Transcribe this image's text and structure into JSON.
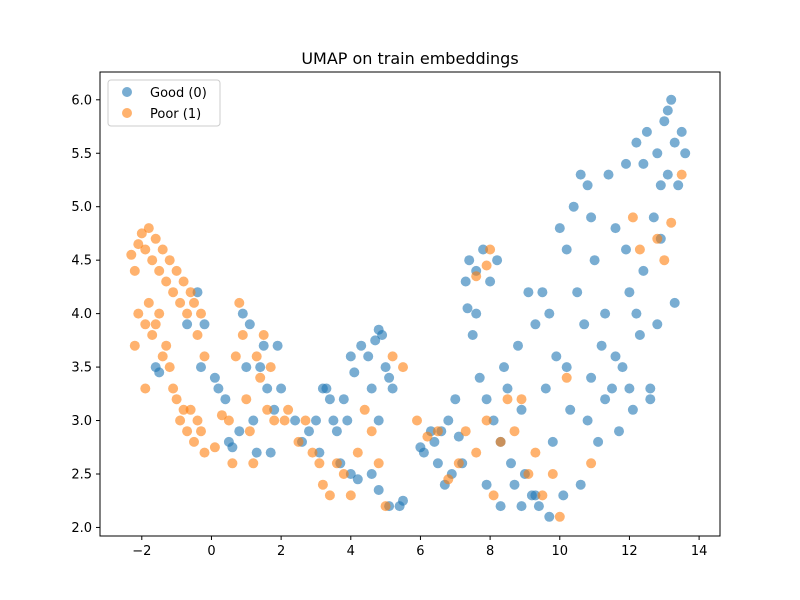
{
  "chart_data": {
    "type": "scatter",
    "title": "UMAP on train embeddings",
    "xlabel": "",
    "ylabel": "",
    "xlim": [
      -3.2,
      14.6
    ],
    "ylim": [
      1.92,
      6.26
    ],
    "xticks": [
      -2,
      0,
      2,
      4,
      6,
      8,
      10,
      12,
      14
    ],
    "yticks": [
      2.0,
      2.5,
      3.0,
      3.5,
      4.0,
      4.5,
      5.0,
      5.5,
      6.0
    ],
    "grid": false,
    "legend_position": "upper-left",
    "series": [
      {
        "name": "Good (0)",
        "color": "#1f77b4",
        "points": [
          [
            -1.6,
            3.5
          ],
          [
            -1.5,
            3.45
          ],
          [
            -0.7,
            3.9
          ],
          [
            -0.4,
            4.2
          ],
          [
            -0.2,
            3.9
          ],
          [
            -0.3,
            3.5
          ],
          [
            0.1,
            3.4
          ],
          [
            0.2,
            3.3
          ],
          [
            0.4,
            3.2
          ],
          [
            0.5,
            2.8
          ],
          [
            0.6,
            2.75
          ],
          [
            0.8,
            2.9
          ],
          [
            0.9,
            4.0
          ],
          [
            1.0,
            3.5
          ],
          [
            1.1,
            3.9
          ],
          [
            1.2,
            3.0
          ],
          [
            1.3,
            2.7
          ],
          [
            1.4,
            3.5
          ],
          [
            1.5,
            3.7
          ],
          [
            1.6,
            3.3
          ],
          [
            1.7,
            2.7
          ],
          [
            1.8,
            3.1
          ],
          [
            1.9,
            3.7
          ],
          [
            2.0,
            3.3
          ],
          [
            2.4,
            3.0
          ],
          [
            2.6,
            2.8
          ],
          [
            2.8,
            2.9
          ],
          [
            3.0,
            3.0
          ],
          [
            3.1,
            2.7
          ],
          [
            3.2,
            3.3
          ],
          [
            3.3,
            3.3
          ],
          [
            3.4,
            3.2
          ],
          [
            3.5,
            3.0
          ],
          [
            3.6,
            2.9
          ],
          [
            3.7,
            2.6
          ],
          [
            3.8,
            3.2
          ],
          [
            3.9,
            3.0
          ],
          [
            4.0,
            3.6
          ],
          [
            4.0,
            2.5
          ],
          [
            4.1,
            3.45
          ],
          [
            4.2,
            2.45
          ],
          [
            4.3,
            3.7
          ],
          [
            4.5,
            3.6
          ],
          [
            4.6,
            3.3
          ],
          [
            4.7,
            3.75
          ],
          [
            4.8,
            3.85
          ],
          [
            4.8,
            2.35
          ],
          [
            4.9,
            3.8
          ],
          [
            4.6,
            2.5
          ],
          [
            4.8,
            3.0
          ],
          [
            5.0,
            3.5
          ],
          [
            5.1,
            3.4
          ],
          [
            5.2,
            3.3
          ],
          [
            5.4,
            2.2
          ],
          [
            5.5,
            2.25
          ],
          [
            5.1,
            2.2
          ],
          [
            6.0,
            2.75
          ],
          [
            6.1,
            2.7
          ],
          [
            6.3,
            2.9
          ],
          [
            6.4,
            2.8
          ],
          [
            6.5,
            2.6
          ],
          [
            6.6,
            2.9
          ],
          [
            6.8,
            3.0
          ],
          [
            6.9,
            2.5
          ],
          [
            7.1,
            2.85
          ],
          [
            7.3,
            4.3
          ],
          [
            7.35,
            4.05
          ],
          [
            7.4,
            4.5
          ],
          [
            7.5,
            3.8
          ],
          [
            7.6,
            4.4
          ],
          [
            7.7,
            3.4
          ],
          [
            7.8,
            4.6
          ],
          [
            7.9,
            3.2
          ],
          [
            8.0,
            4.3
          ],
          [
            8.1,
            3.0
          ],
          [
            8.2,
            4.5
          ],
          [
            8.3,
            2.8
          ],
          [
            8.4,
            3.5
          ],
          [
            8.5,
            3.3
          ],
          [
            8.6,
            2.6
          ],
          [
            8.7,
            2.4
          ],
          [
            8.8,
            3.7
          ],
          [
            8.9,
            3.1
          ],
          [
            9.0,
            2.5
          ],
          [
            9.1,
            4.2
          ],
          [
            9.2,
            2.3
          ],
          [
            9.3,
            3.9
          ],
          [
            9.4,
            2.2
          ],
          [
            9.5,
            4.2
          ],
          [
            9.6,
            3.3
          ],
          [
            9.7,
            4.0
          ],
          [
            9.8,
            2.8
          ],
          [
            9.9,
            3.6
          ],
          [
            10.0,
            4.8
          ],
          [
            10.1,
            2.3
          ],
          [
            10.2,
            4.6
          ],
          [
            10.3,
            3.1
          ],
          [
            10.4,
            5.0
          ],
          [
            10.5,
            4.2
          ],
          [
            10.6,
            2.4
          ],
          [
            10.7,
            3.9
          ],
          [
            10.8,
            5.2
          ],
          [
            10.9,
            3.4
          ],
          [
            11.0,
            4.5
          ],
          [
            11.1,
            2.8
          ],
          [
            11.2,
            3.7
          ],
          [
            11.3,
            4.0
          ],
          [
            11.4,
            5.3
          ],
          [
            11.5,
            3.3
          ],
          [
            11.6,
            4.8
          ],
          [
            11.7,
            2.9
          ],
          [
            11.8,
            3.5
          ],
          [
            11.9,
            5.4
          ],
          [
            12.0,
            4.2
          ],
          [
            12.1,
            3.1
          ],
          [
            12.2,
            5.6
          ],
          [
            12.3,
            3.8
          ],
          [
            12.4,
            4.4
          ],
          [
            12.5,
            5.7
          ],
          [
            12.6,
            3.3
          ],
          [
            12.7,
            4.9
          ],
          [
            12.8,
            5.5
          ],
          [
            12.9,
            4.7
          ],
          [
            13.0,
            5.8
          ],
          [
            13.1,
            5.3
          ],
          [
            13.2,
            6.0
          ],
          [
            13.3,
            5.6
          ],
          [
            13.4,
            5.2
          ],
          [
            13.5,
            5.7
          ],
          [
            13.6,
            5.5
          ],
          [
            13.1,
            5.9
          ],
          [
            12.9,
            5.2
          ],
          [
            12.4,
            5.4
          ],
          [
            11.9,
            4.6
          ],
          [
            11.3,
            3.2
          ],
          [
            10.8,
            3.0
          ],
          [
            10.2,
            3.5
          ],
          [
            9.7,
            2.1
          ],
          [
            9.3,
            2.3
          ],
          [
            8.9,
            2.2
          ],
          [
            8.3,
            2.2
          ],
          [
            7.9,
            2.4
          ],
          [
            7.6,
            4.0
          ],
          [
            7.2,
            2.6
          ],
          [
            7.0,
            3.2
          ],
          [
            6.7,
            2.4
          ],
          [
            12.0,
            3.3
          ],
          [
            12.6,
            3.2
          ],
          [
            11.6,
            3.6
          ],
          [
            10.9,
            4.9
          ],
          [
            10.6,
            5.3
          ],
          [
            12.2,
            4.0
          ],
          [
            13.3,
            4.1
          ],
          [
            12.8,
            3.9
          ]
        ]
      },
      {
        "name": "Poor (1)",
        "color": "#ff7f0e",
        "points": [
          [
            -2.3,
            4.55
          ],
          [
            -2.2,
            4.4
          ],
          [
            -2.1,
            4.65
          ],
          [
            -2.0,
            4.75
          ],
          [
            -1.9,
            4.6
          ],
          [
            -1.8,
            4.8
          ],
          [
            -1.7,
            4.5
          ],
          [
            -1.6,
            4.7
          ],
          [
            -1.5,
            4.4
          ],
          [
            -1.4,
            4.6
          ],
          [
            -1.3,
            4.3
          ],
          [
            -1.2,
            4.5
          ],
          [
            -1.1,
            4.2
          ],
          [
            -1.0,
            4.4
          ],
          [
            -0.9,
            4.1
          ],
          [
            -0.8,
            4.3
          ],
          [
            -0.7,
            4.0
          ],
          [
            -0.6,
            4.2
          ],
          [
            -0.5,
            4.1
          ],
          [
            -0.4,
            3.8
          ],
          [
            -0.3,
            4.0
          ],
          [
            -0.2,
            3.6
          ],
          [
            -2.1,
            4.0
          ],
          [
            -1.9,
            3.9
          ],
          [
            -1.8,
            4.1
          ],
          [
            -1.7,
            3.8
          ],
          [
            -1.6,
            3.9
          ],
          [
            -1.5,
            4.0
          ],
          [
            -1.4,
            3.6
          ],
          [
            -1.3,
            3.7
          ],
          [
            -1.2,
            3.5
          ],
          [
            -1.1,
            3.3
          ],
          [
            -1.0,
            3.2
          ],
          [
            -0.9,
            3.0
          ],
          [
            -0.8,
            3.1
          ],
          [
            -0.7,
            2.9
          ],
          [
            -0.6,
            3.1
          ],
          [
            -0.5,
            2.8
          ],
          [
            -0.4,
            3.0
          ],
          [
            -0.3,
            2.9
          ],
          [
            -0.2,
            2.7
          ],
          [
            0.1,
            2.75
          ],
          [
            0.3,
            3.05
          ],
          [
            0.5,
            3.0
          ],
          [
            0.6,
            2.6
          ],
          [
            0.7,
            3.6
          ],
          [
            0.8,
            4.1
          ],
          [
            0.9,
            3.8
          ],
          [
            1.0,
            3.2
          ],
          [
            1.1,
            2.9
          ],
          [
            1.2,
            2.6
          ],
          [
            1.3,
            3.6
          ],
          [
            1.4,
            3.4
          ],
          [
            1.5,
            3.8
          ],
          [
            1.6,
            3.1
          ],
          [
            1.7,
            3.5
          ],
          [
            1.8,
            3.0
          ],
          [
            2.1,
            3.0
          ],
          [
            2.2,
            3.1
          ],
          [
            2.5,
            2.8
          ],
          [
            2.7,
            3.0
          ],
          [
            2.9,
            2.7
          ],
          [
            3.1,
            2.6
          ],
          [
            3.2,
            2.4
          ],
          [
            3.4,
            2.3
          ],
          [
            3.6,
            2.6
          ],
          [
            3.8,
            2.5
          ],
          [
            4.0,
            2.3
          ],
          [
            4.2,
            2.7
          ],
          [
            4.4,
            3.1
          ],
          [
            4.6,
            2.9
          ],
          [
            4.8,
            2.6
          ],
          [
            5.0,
            2.2
          ],
          [
            5.2,
            3.6
          ],
          [
            5.5,
            3.5
          ],
          [
            5.9,
            3.0
          ],
          [
            6.2,
            2.85
          ],
          [
            6.5,
            2.9
          ],
          [
            6.8,
            2.45
          ],
          [
            7.1,
            2.6
          ],
          [
            7.3,
            2.9
          ],
          [
            7.6,
            2.7
          ],
          [
            7.9,
            3.0
          ],
          [
            8.1,
            2.3
          ],
          [
            8.3,
            2.8
          ],
          [
            8.5,
            3.2
          ],
          [
            8.7,
            2.9
          ],
          [
            8.9,
            3.2
          ],
          [
            9.1,
            2.5
          ],
          [
            9.3,
            2.7
          ],
          [
            9.5,
            2.3
          ],
          [
            9.8,
            2.5
          ],
          [
            10.0,
            2.1
          ],
          [
            10.2,
            3.4
          ],
          [
            10.9,
            2.6
          ],
          [
            12.1,
            4.9
          ],
          [
            12.3,
            4.6
          ],
          [
            12.8,
            4.7
          ],
          [
            13.2,
            4.85
          ],
          [
            13.5,
            5.3
          ],
          [
            13.0,
            4.5
          ],
          [
            7.6,
            4.35
          ],
          [
            7.9,
            4.45
          ],
          [
            8.0,
            4.6
          ],
          [
            -2.2,
            3.7
          ],
          [
            -1.9,
            3.3
          ]
        ]
      }
    ]
  }
}
